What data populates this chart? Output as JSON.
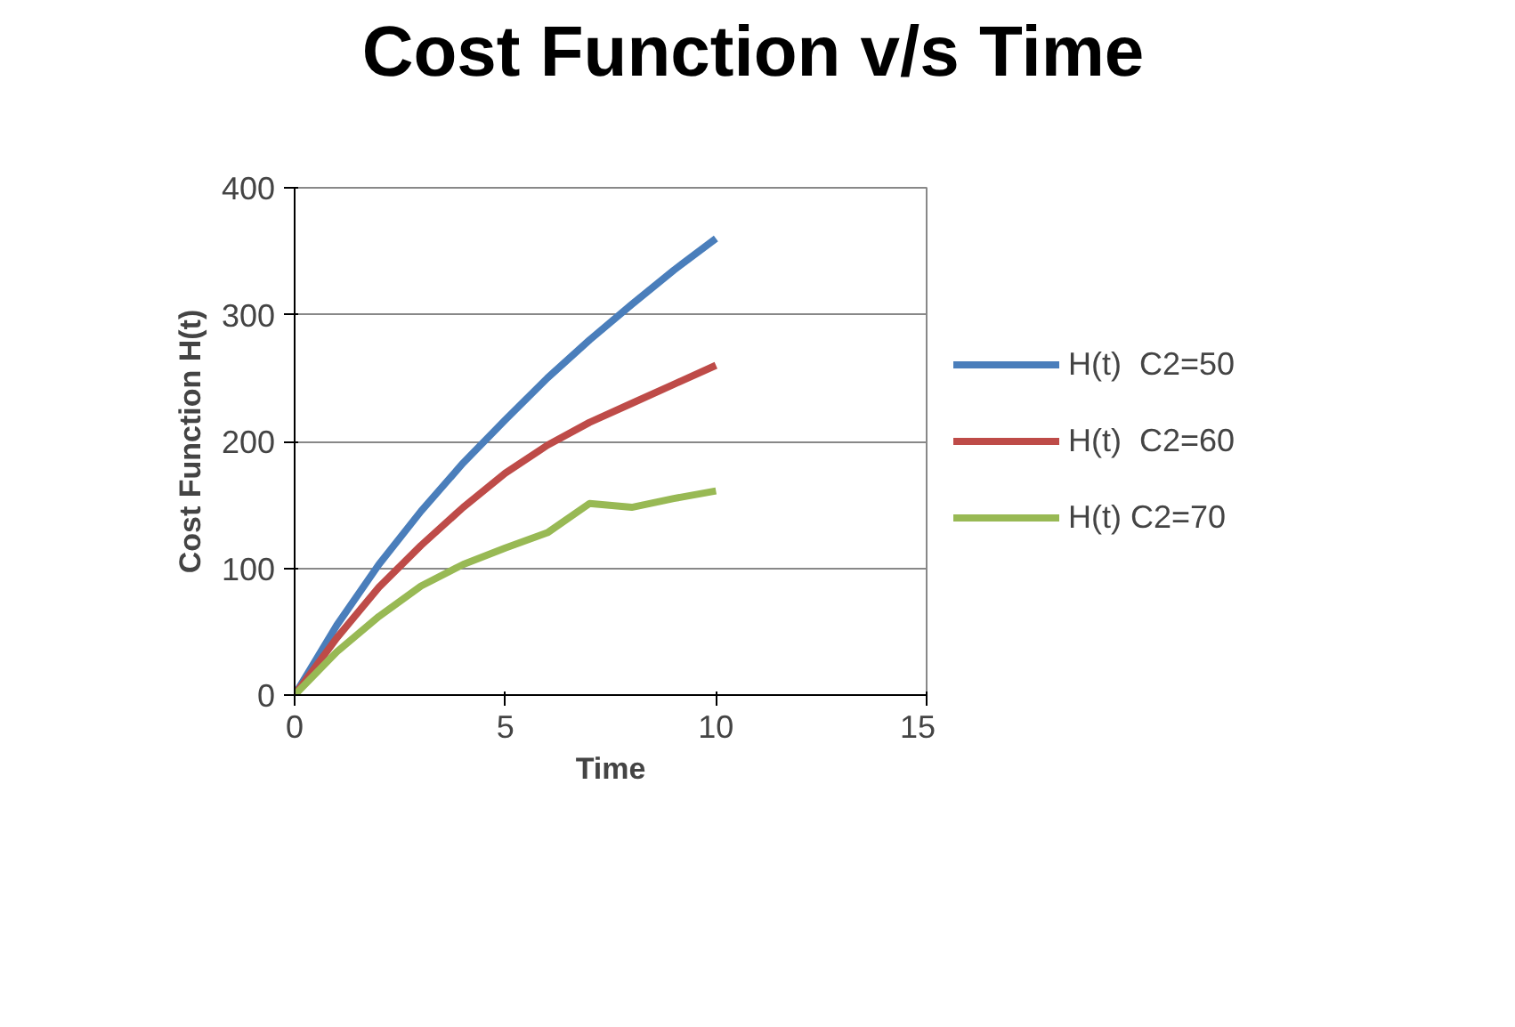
{
  "chart_data": {
    "type": "line",
    "title": "Cost Function v/s Time",
    "xlabel": "Time",
    "ylabel": "Cost Function H(t)",
    "x": [
      0,
      1,
      2,
      3,
      4,
      5,
      6,
      7,
      8,
      9,
      10
    ],
    "xlim": [
      0,
      15
    ],
    "xticks": [
      0,
      5,
      10,
      15
    ],
    "ylim": [
      0,
      400
    ],
    "yticks": [
      0,
      100,
      200,
      300,
      400
    ],
    "grid": "y",
    "legend": "right",
    "marker": "none",
    "series": [
      {
        "name": "H(t)  C2=50",
        "color": "#4a7ebb",
        "values": [
          0,
          55,
          103,
          145,
          183,
          217,
          250,
          280,
          308,
          335,
          360
        ]
      },
      {
        "name": "H(t)  C2=60",
        "color": "#be4b48",
        "values": [
          0,
          45,
          85,
          118,
          148,
          175,
          197,
          215,
          230,
          245,
          260
        ]
      },
      {
        "name": "H(t) C2=70",
        "color": "#98b954",
        "values": [
          0,
          34,
          62,
          86,
          103,
          116,
          128,
          151,
          148,
          155,
          161
        ]
      }
    ]
  }
}
